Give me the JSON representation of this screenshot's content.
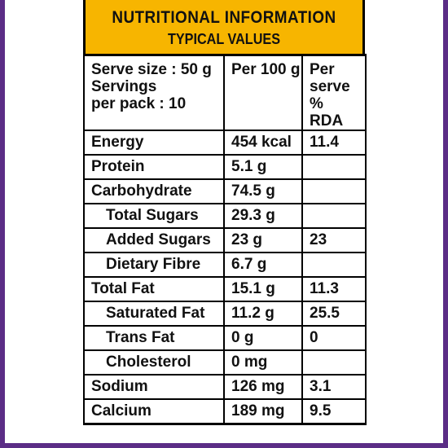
{
  "colors": {
    "border_purple": "#5b2d86",
    "header_yellow": "#f7b500",
    "text": "#111111",
    "background": "#ffffff"
  },
  "header": {
    "title": "NUTRITIONAL INFORMATION",
    "subtitle": "TYPICAL VALUES"
  },
  "table": {
    "columns": {
      "serve_size": "Serve size : 50 g",
      "servings": "Servings",
      "per_pack": "per pack : 10",
      "per_100g": "Per 100 g",
      "per_serve_line1": "Per",
      "per_serve_line2": "serve %",
      "per_serve_line3": "RDA"
    },
    "rows": [
      {
        "name": "Energy",
        "per_100g": "454 kcal",
        "rda": "11.4"
      },
      {
        "name": "Protein",
        "per_100g": "5.1 g",
        "rda": ""
      },
      {
        "name": "Carbohydrate",
        "per_100g": "74.5 g",
        "rda": ""
      },
      {
        "name": "Total Sugars",
        "per_100g": "29.3 g",
        "rda": ""
      },
      {
        "name": "Added Sugars",
        "per_100g": "23 g",
        "rda": "23"
      },
      {
        "name": "Dietary Fibre",
        "per_100g": "6.7 g",
        "rda": ""
      },
      {
        "name": "Total Fat",
        "per_100g": "15.1 g",
        "rda": "11.3"
      },
      {
        "name": "Saturated Fat",
        "per_100g": "11.2 g",
        "rda": "25.5"
      },
      {
        "name": "Trans Fat",
        "per_100g": "0 g",
        "rda": "0"
      },
      {
        "name": "Cholesterol",
        "per_100g": "0 mg",
        "rda": ""
      },
      {
        "name": "Sodium",
        "per_100g": "126 mg",
        "rda": "3.1"
      },
      {
        "name": "Calcium",
        "per_100g": "189 mg",
        "rda": "9.5"
      }
    ]
  }
}
